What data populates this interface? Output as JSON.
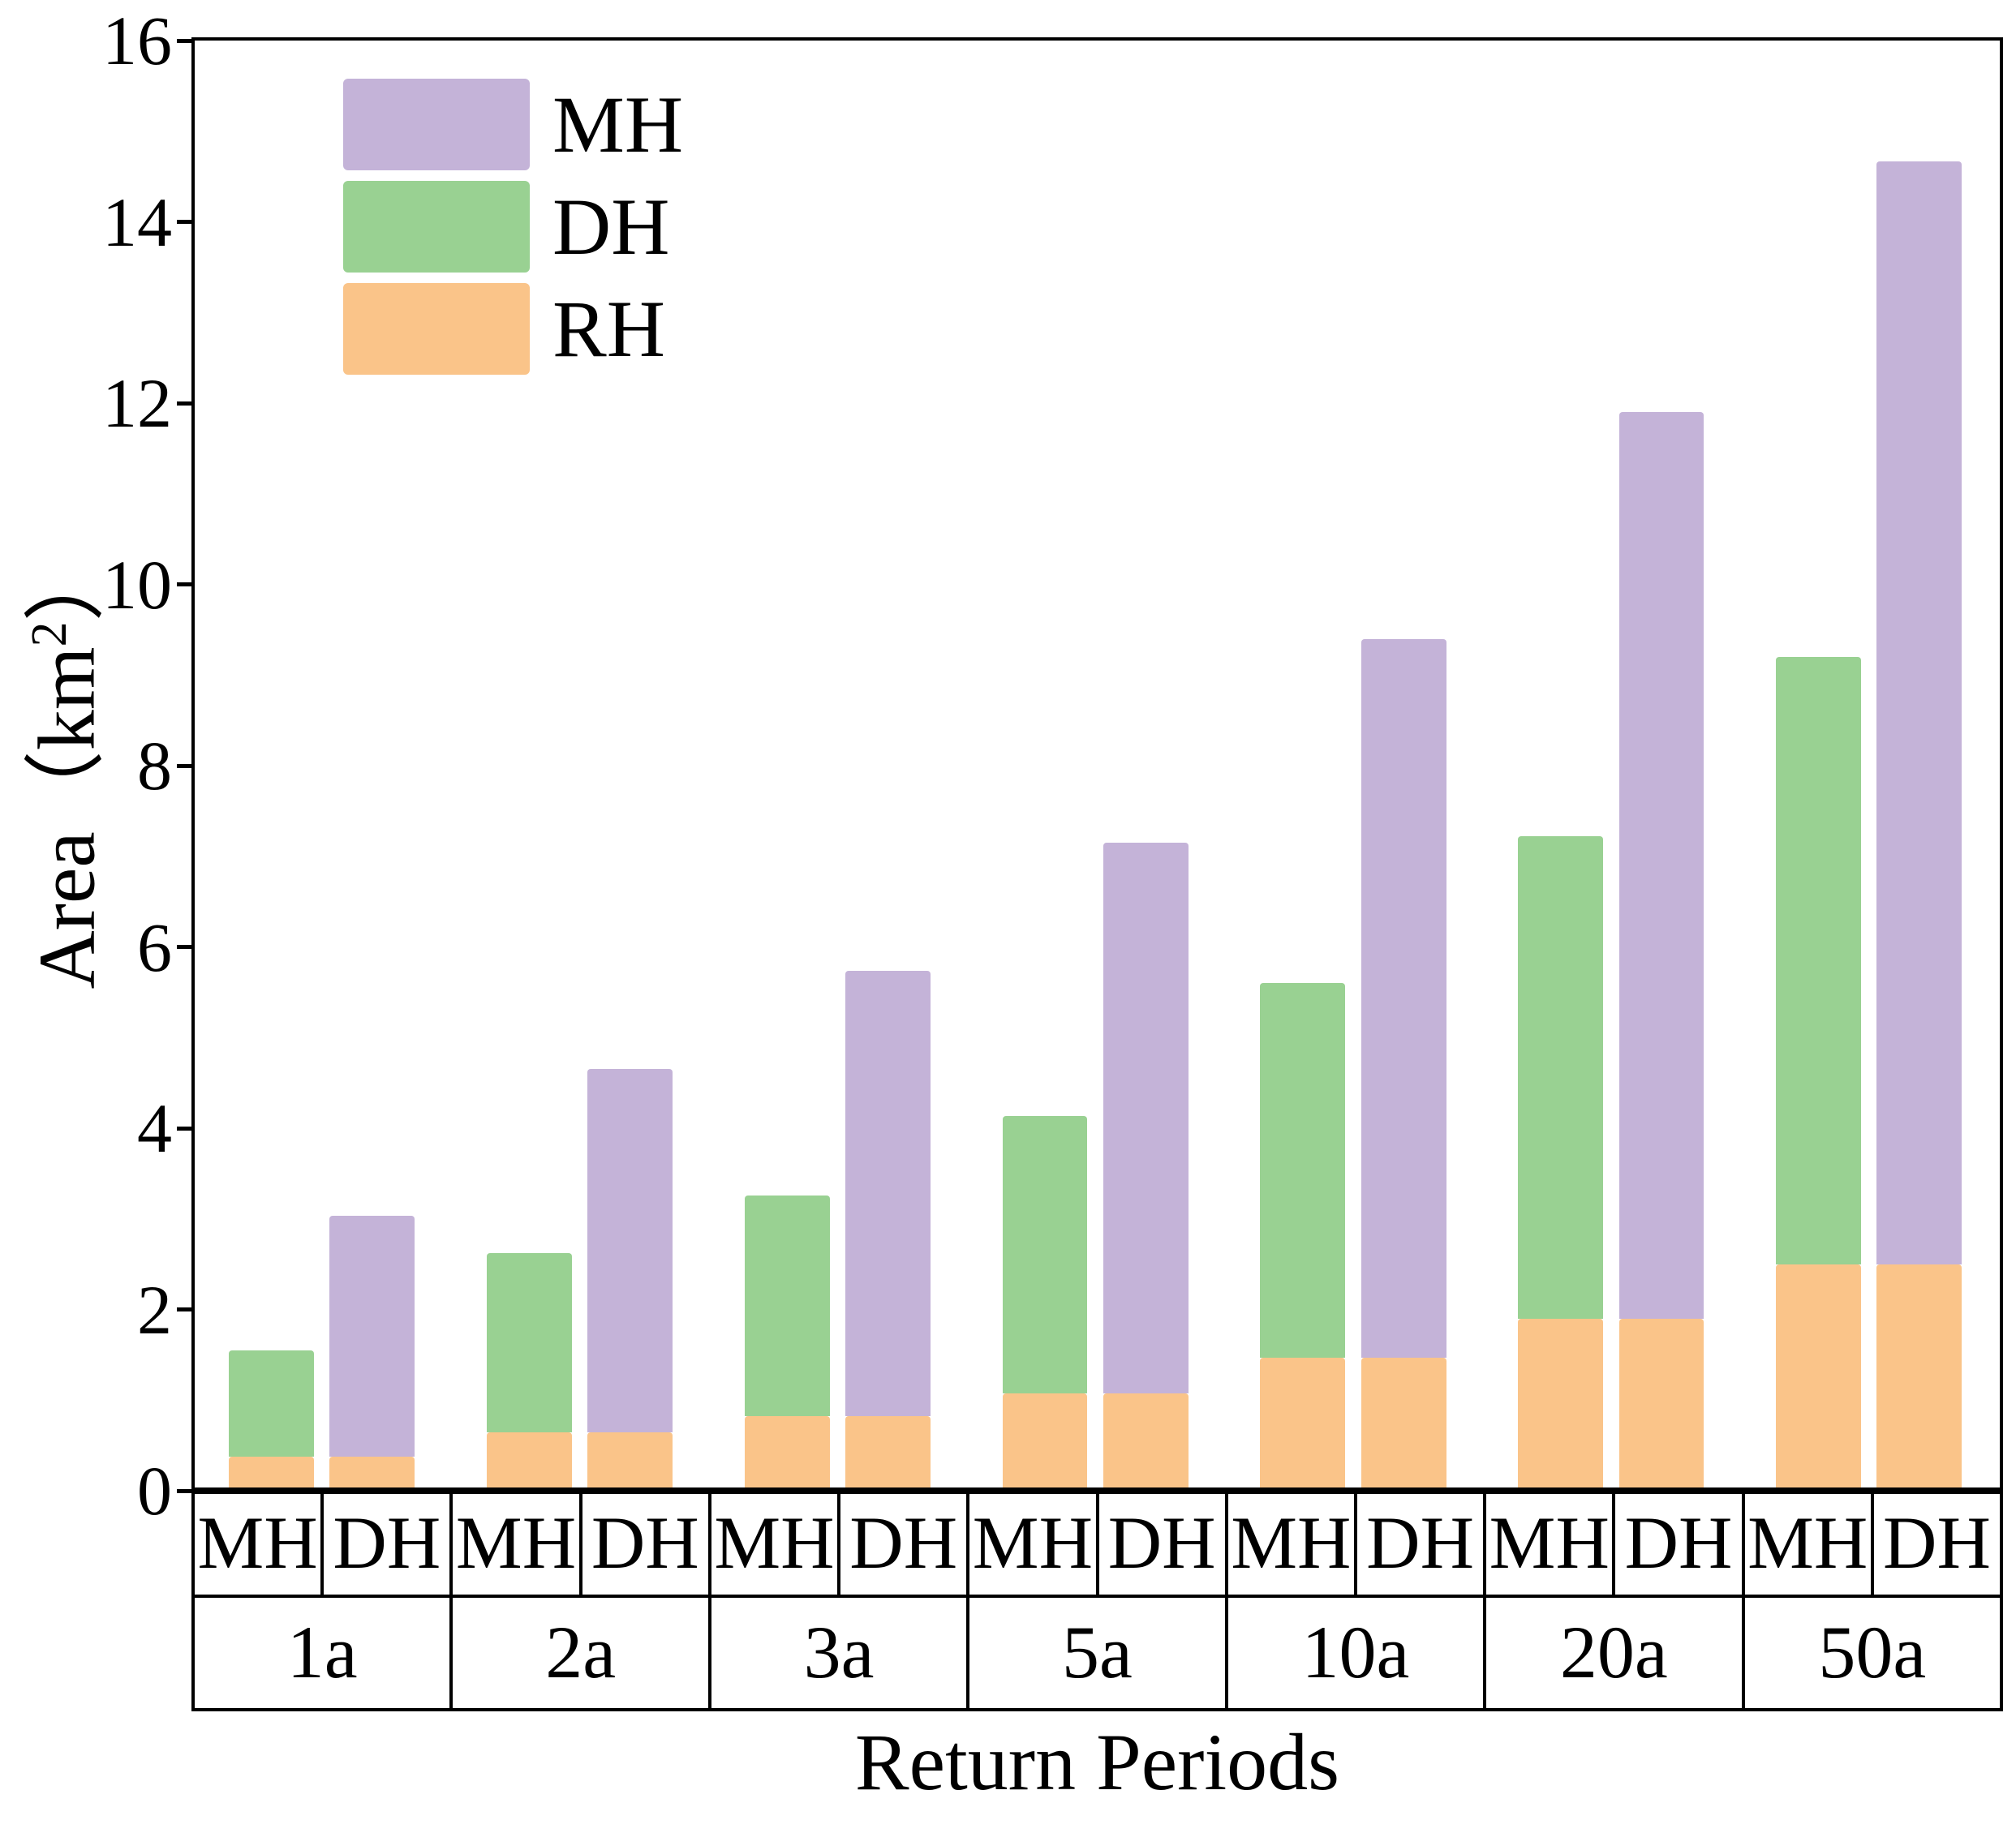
{
  "labels": {
    "x_title": "Return Periods",
    "y_label_pre": "Area（km",
    "y_label_sup": "2",
    "y_label_post": "）"
  },
  "chart_data": {
    "type": "bar",
    "stacked": true,
    "title": "",
    "xlabel": "Return Periods",
    "ylabel": "Area (km2)",
    "ylim": [
      0,
      16
    ],
    "yticks": [
      "0",
      "2",
      "4",
      "6",
      "8",
      "10",
      "12",
      "14",
      "16"
    ],
    "grid": false,
    "legend_position": "top-left-inside",
    "legend": [
      {
        "name": "MH",
        "color": "#c4b3d8"
      },
      {
        "name": "DH",
        "color": "#99d192"
      },
      {
        "name": "RH",
        "color": "#fac489"
      }
    ],
    "colors": {
      "MH": "#c4b3d8",
      "DH": "#99d192",
      "RH": "#fac489"
    },
    "groups": [
      {
        "period": "1a",
        "bars": [
          {
            "label": "MH",
            "stack_top": 1.55,
            "segments": [
              {
                "name": "RH",
                "value": 0.38
              },
              {
                "name": "DH",
                "value": 1.17
              }
            ]
          },
          {
            "label": "DH",
            "stack_top": 3.03,
            "segments": [
              {
                "name": "RH",
                "value": 0.38
              },
              {
                "name": "MH",
                "value": 2.65
              }
            ]
          }
        ]
      },
      {
        "period": "2a",
        "bars": [
          {
            "label": "MH",
            "stack_top": 2.62,
            "segments": [
              {
                "name": "RH",
                "value": 0.64
              },
              {
                "name": "DH",
                "value": 1.98
              }
            ]
          },
          {
            "label": "DH",
            "stack_top": 4.65,
            "segments": [
              {
                "name": "RH",
                "value": 0.64
              },
              {
                "name": "MH",
                "value": 4.01
              }
            ]
          }
        ]
      },
      {
        "period": "3a",
        "bars": [
          {
            "label": "MH",
            "stack_top": 3.26,
            "segments": [
              {
                "name": "RH",
                "value": 0.82
              },
              {
                "name": "DH",
                "value": 2.44
              }
            ]
          },
          {
            "label": "DH",
            "stack_top": 5.74,
            "segments": [
              {
                "name": "RH",
                "value": 0.82
              },
              {
                "name": "MH",
                "value": 4.92
              }
            ]
          }
        ]
      },
      {
        "period": "5a",
        "bars": [
          {
            "label": "MH",
            "stack_top": 4.13,
            "segments": [
              {
                "name": "RH",
                "value": 1.07
              },
              {
                "name": "DH",
                "value": 3.06
              }
            ]
          },
          {
            "label": "DH",
            "stack_top": 7.15,
            "segments": [
              {
                "name": "RH",
                "value": 1.07
              },
              {
                "name": "MH",
                "value": 6.08
              }
            ]
          }
        ]
      },
      {
        "period": "10a",
        "bars": [
          {
            "label": "MH",
            "stack_top": 5.6,
            "segments": [
              {
                "name": "RH",
                "value": 1.47
              },
              {
                "name": "DH",
                "value": 4.13
              }
            ]
          },
          {
            "label": "DH",
            "stack_top": 9.4,
            "segments": [
              {
                "name": "RH",
                "value": 1.47
              },
              {
                "name": "MH",
                "value": 7.93
              }
            ]
          }
        ]
      },
      {
        "period": "20a",
        "bars": [
          {
            "label": "MH",
            "stack_top": 7.22,
            "segments": [
              {
                "name": "RH",
                "value": 1.9
              },
              {
                "name": "DH",
                "value": 5.32
              }
            ]
          },
          {
            "label": "DH",
            "stack_top": 11.9,
            "segments": [
              {
                "name": "RH",
                "value": 1.9
              },
              {
                "name": "MH",
                "value": 10.0
              }
            ]
          }
        ]
      },
      {
        "period": "50a",
        "bars": [
          {
            "label": "MH",
            "stack_top": 9.2,
            "segments": [
              {
                "name": "RH",
                "value": 2.5
              },
              {
                "name": "DH",
                "value": 6.7
              }
            ]
          },
          {
            "label": "DH",
            "stack_top": 14.67,
            "segments": [
              {
                "name": "RH",
                "value": 2.5
              },
              {
                "name": "MH",
                "value": 12.17
              }
            ]
          }
        ]
      }
    ]
  }
}
